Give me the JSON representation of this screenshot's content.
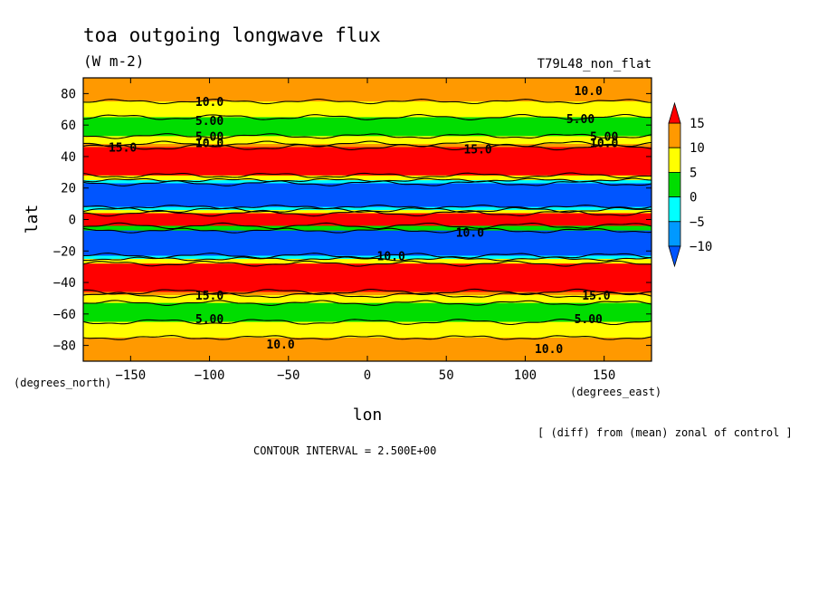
{
  "chart_data": {
    "type": "heatmap",
    "title": "toa outgoing longwave flux",
    "units": "(W m-2)",
    "run_label": "T79L48_non_flat",
    "xlabel": "lon",
    "ylabel": "lat",
    "xunits_label": "(degrees_east)",
    "yunits_label": "(degrees_north)",
    "xlim": [
      -180,
      180
    ],
    "ylim": [
      -90,
      90
    ],
    "xticks": [
      -150,
      -100,
      -50,
      0,
      50,
      100,
      150
    ],
    "xtick_labels": [
      "−150",
      "−100",
      "−50",
      "0",
      "50",
      "100",
      "150"
    ],
    "yticks": [
      80,
      60,
      40,
      20,
      0,
      -20,
      -40,
      -60,
      -80
    ],
    "ytick_labels": [
      "80",
      "60",
      "40",
      "20",
      "0",
      "−20",
      "−40",
      "−60",
      "−80"
    ],
    "contour_interval_text": "CONTOUR INTERVAL = 2.500E+00",
    "footnote": "[ (diff) from (mean) zonal of control ]",
    "colorbar": {
      "ticks": [
        "15",
        "10",
        "5",
        "0",
        "−5",
        "−10"
      ],
      "levels": [
        {
          "min": 15,
          "max": 20,
          "color": "#ff0000"
        },
        {
          "min": 10,
          "max": 15,
          "color": "#ff9900"
        },
        {
          "min": 5,
          "max": 10,
          "color": "#ffff00"
        },
        {
          "min": 0,
          "max": 5,
          "color": "#00dd00"
        },
        {
          "min": -5,
          "max": 0,
          "color": "#00ffff"
        },
        {
          "min": -10,
          "max": -5,
          "color": "#0099ff"
        },
        {
          "min": -15,
          "max": -10,
          "color": "#0055ff"
        }
      ]
    },
    "zonal_bands": [
      {
        "lat_top": 90,
        "lat_bottom": 75,
        "value": 12.5
      },
      {
        "lat_top": 75,
        "lat_bottom": 65,
        "value": 7.5
      },
      {
        "lat_top": 65,
        "lat_bottom": 53,
        "value": 2.5
      },
      {
        "lat_top": 53,
        "lat_bottom": 48,
        "value": 7.5
      },
      {
        "lat_top": 48,
        "lat_bottom": 46,
        "value": 12.5
      },
      {
        "lat_top": 46,
        "lat_bottom": 28,
        "value": 17.5
      },
      {
        "lat_top": 28,
        "lat_bottom": 25,
        "value": 7.5
      },
      {
        "lat_top": 25,
        "lat_bottom": 23,
        "value": -2.5
      },
      {
        "lat_top": 23,
        "lat_bottom": 8,
        "value": -12.5
      },
      {
        "lat_top": 8,
        "lat_bottom": 6,
        "value": -2.5
      },
      {
        "lat_top": 6,
        "lat_bottom": 4,
        "value": 7.5
      },
      {
        "lat_top": 4,
        "lat_bottom": -4,
        "value": 17.5
      },
      {
        "lat_top": -4,
        "lat_bottom": -7,
        "value": 2.5
      },
      {
        "lat_top": -7,
        "lat_bottom": -23,
        "value": -12.5
      },
      {
        "lat_top": -23,
        "lat_bottom": -25,
        "value": -2.5
      },
      {
        "lat_top": -25,
        "lat_bottom": -28,
        "value": 7.5
      },
      {
        "lat_top": -28,
        "lat_bottom": -46,
        "value": 17.5
      },
      {
        "lat_top": -46,
        "lat_bottom": -48,
        "value": 12.5
      },
      {
        "lat_top": -48,
        "lat_bottom": -53,
        "value": 7.5
      },
      {
        "lat_top": -53,
        "lat_bottom": -65,
        "value": 2.5
      },
      {
        "lat_top": -65,
        "lat_bottom": -75,
        "value": 7.5
      },
      {
        "lat_top": -75,
        "lat_bottom": -90,
        "value": 12.5
      }
    ],
    "contour_labels": [
      {
        "lon": -100,
        "lat": 75,
        "text": "10.0"
      },
      {
        "lon": 140,
        "lat": 82,
        "text": "10.0"
      },
      {
        "lon": -100,
        "lat": 63,
        "text": "5.00"
      },
      {
        "lon": 135,
        "lat": 64,
        "text": "5.00"
      },
      {
        "lon": -100,
        "lat": 53,
        "text": "5.00"
      },
      {
        "lon": 150,
        "lat": 53,
        "text": "5.00"
      },
      {
        "lon": -100,
        "lat": 49,
        "text": "10.0"
      },
      {
        "lon": 150,
        "lat": 49,
        "text": "10.0"
      },
      {
        "lon": -155,
        "lat": 46,
        "text": "15.0"
      },
      {
        "lon": 70,
        "lat": 45,
        "text": "15.0"
      },
      {
        "lon": 15,
        "lat": -23,
        "text": "10.0"
      },
      {
        "lon": 65,
        "lat": -8,
        "text": "10.0"
      },
      {
        "lon": -100,
        "lat": -48,
        "text": "15.0"
      },
      {
        "lon": 145,
        "lat": -48,
        "text": "15.0"
      },
      {
        "lon": -100,
        "lat": -63,
        "text": "5.00"
      },
      {
        "lon": 140,
        "lat": -63,
        "text": "5.00"
      },
      {
        "lon": -55,
        "lat": -79,
        "text": "10.0"
      },
      {
        "lon": 115,
        "lat": -82,
        "text": "10.0"
      }
    ]
  }
}
